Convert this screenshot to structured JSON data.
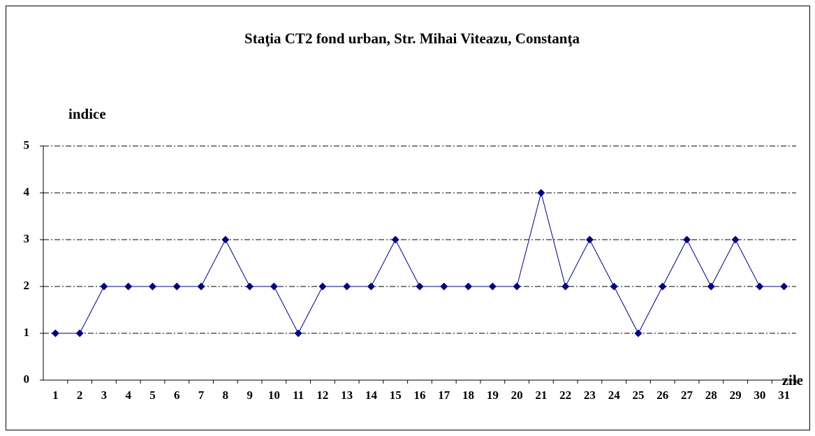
{
  "chart_data": {
    "type": "line",
    "title": "Staţia CT2 fond urban,  Str. Mihai Viteazu, Constanţa",
    "y_label": "indice",
    "x_label": "zile",
    "categories": [
      1,
      2,
      3,
      4,
      5,
      6,
      7,
      8,
      9,
      10,
      11,
      12,
      13,
      14,
      15,
      16,
      17,
      18,
      19,
      20,
      21,
      22,
      23,
      24,
      25,
      26,
      27,
      28,
      29,
      30,
      31
    ],
    "series": [
      {
        "name": "indice",
        "color": "#000080",
        "values": [
          1,
          1,
          2,
          2,
          2,
          2,
          2,
          3,
          2,
          2,
          1,
          2,
          2,
          2,
          3,
          2,
          2,
          2,
          2,
          2,
          4,
          2,
          3,
          2,
          1,
          2,
          3,
          2,
          3,
          2,
          2
        ]
      }
    ],
    "ylim": [
      0,
      5
    ],
    "yticks": [
      0,
      1,
      2,
      3,
      4,
      5
    ],
    "grid": true,
    "legend": false
  }
}
